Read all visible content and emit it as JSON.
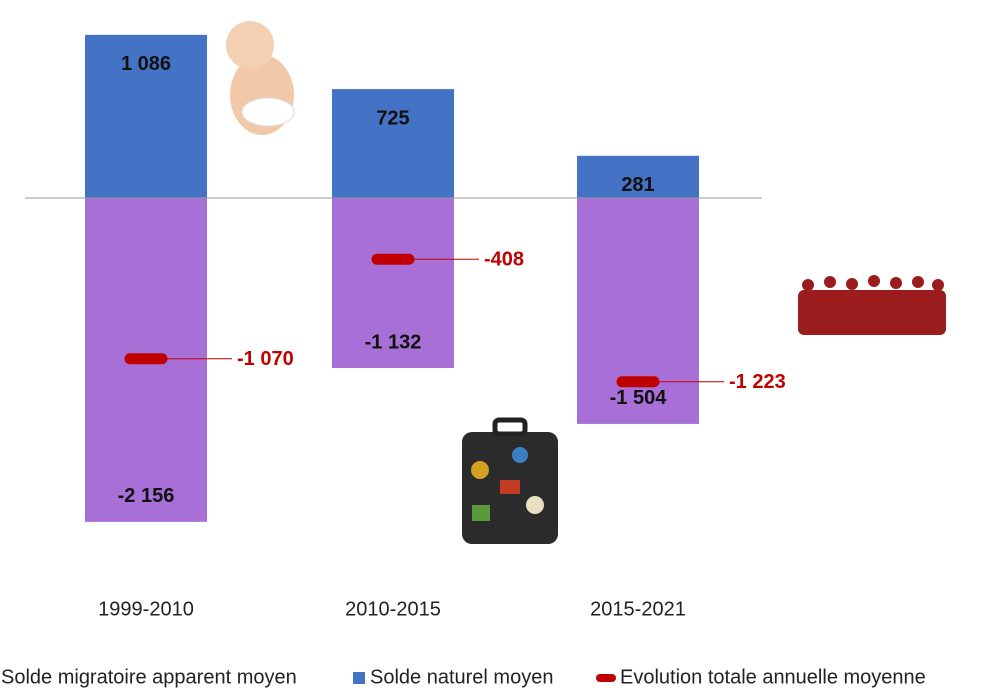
{
  "chart_data": {
    "type": "bar",
    "stacked": true,
    "categories": [
      "1999-2010",
      "2010-2015",
      "2015-2021"
    ],
    "series": [
      {
        "name": "Solde migratoire apparent moyen",
        "color": "#a86fd6",
        "values": [
          -2156,
          -1132,
          -1504
        ],
        "value_labels": [
          "-2 156",
          "-1 132",
          "-1 504"
        ]
      },
      {
        "name": "Solde naturel moyen",
        "color": "#4472c4",
        "values": [
          1086,
          725,
          281
        ],
        "value_labels": [
          "1 086",
          "725",
          "281"
        ]
      },
      {
        "name": "Evolution totale annuelle moyenne",
        "color": "#c00000",
        "type": "marker",
        "values": [
          -1070,
          -408,
          -1223
        ],
        "value_labels": [
          "-1 070",
          "-408",
          "-1 223"
        ]
      }
    ]
  }
}
